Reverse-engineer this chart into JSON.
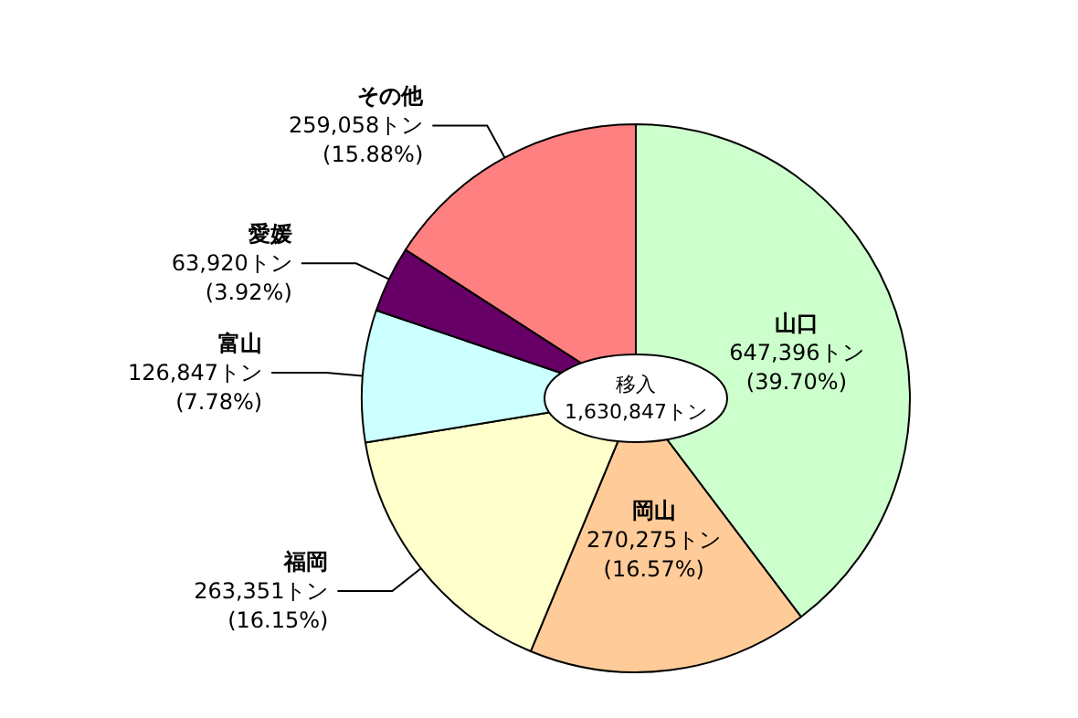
{
  "chart_data": {
    "type": "pie",
    "categories": [
      "山口",
      "岡山",
      "福岡",
      "富山",
      "愛媛",
      "その他"
    ],
    "values": [
      647396,
      270275,
      263351,
      126847,
      63920,
      259058
    ],
    "value_labels": [
      "647,396トン\n(39.70%)",
      "270,275トン\n(16.57%)",
      "263,351トン\n(16.15%)",
      "126,847トン\n(7.78%)",
      "63,920トン\n(3.92%)",
      "259,058トン\n(15.88%)"
    ],
    "colors": [
      "#ccffcc",
      "#ffcc99",
      "#ffffcc",
      "#ccffff",
      "#660066",
      "#ff8080"
    ],
    "annotations": [
      "移入\n1,630,847トン"
    ],
    "legend": false
  }
}
